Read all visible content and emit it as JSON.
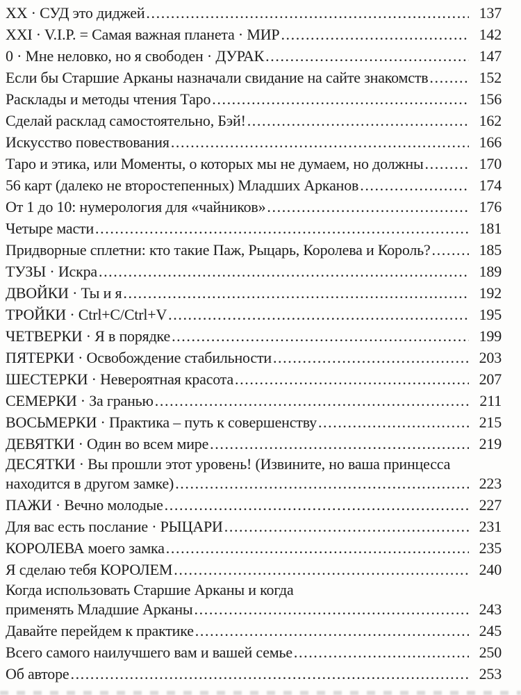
{
  "page": {
    "background_color": "#fdfdfc",
    "text_color": "#1e1e1e",
    "language": "ru",
    "kind": "book-table-of-contents"
  },
  "toc": {
    "entries": [
      {
        "lines": [
          "XX · СУД это диджей"
        ],
        "page": "137"
      },
      {
        "lines": [
          "XXI · V.I.P. = Самая важная планета · МИР"
        ],
        "page": "142"
      },
      {
        "lines": [
          "0 · Мне неловко, но я свободен · ДУРАК"
        ],
        "page": "147"
      },
      {
        "lines": [
          "Если бы Старшие Арканы назначали свидание на сайте знакомств"
        ],
        "page": "152"
      },
      {
        "lines": [
          "Расклады и методы чтения Таро"
        ],
        "page": "156"
      },
      {
        "lines": [
          "Сделай расклад самостоятельно, Бэй!"
        ],
        "page": "162"
      },
      {
        "lines": [
          "Искусство повествования"
        ],
        "page": "166"
      },
      {
        "lines": [
          "Таро и этика, или Моменты, о которых мы не думаем, но должны"
        ],
        "page": "170"
      },
      {
        "lines": [
          "56 карт (далеко не второстепенных) Младших Арканов"
        ],
        "page": "174"
      },
      {
        "lines": [
          "От 1 до 10: нумерология для «чайников»"
        ],
        "page": "176"
      },
      {
        "lines": [
          "Четыре масти"
        ],
        "page": "181"
      },
      {
        "lines": [
          "Придворные сплетни: кто такие Паж, Рыцарь, Королева и Король?"
        ],
        "page": "185"
      },
      {
        "lines": [
          "ТУЗЫ · Искра"
        ],
        "page": "189"
      },
      {
        "lines": [
          "ДВОЙКИ · Ты и я"
        ],
        "page": "192"
      },
      {
        "lines": [
          "ТРОЙКИ · Ctrl+C/Ctrl+V"
        ],
        "page": "195"
      },
      {
        "lines": [
          "ЧЕТВЕРКИ · Я в порядке"
        ],
        "page": "199"
      },
      {
        "lines": [
          "ПЯТЕРКИ · Освобождение стабильности"
        ],
        "page": "203"
      },
      {
        "lines": [
          "ШЕСТЕРКИ · Невероятная красота"
        ],
        "page": "207"
      },
      {
        "lines": [
          "СЕМЕРКИ · За гранью"
        ],
        "page": "211"
      },
      {
        "lines": [
          "ВОСЬМЕРКИ · Практика – путь к совершенству"
        ],
        "page": "215"
      },
      {
        "lines": [
          "ДЕВЯТКИ · Один во всем мире"
        ],
        "page": "219"
      },
      {
        "lines": [
          "ДЕСЯТКИ · Вы прошли этот уровень! (Извините, но ваша принцесса",
          "находится в другом замке)"
        ],
        "page": "223"
      },
      {
        "lines": [
          "ПАЖИ · Вечно молодые"
        ],
        "page": "227"
      },
      {
        "lines": [
          "Для вас есть послание · РЫЦАРИ"
        ],
        "page": "231"
      },
      {
        "lines": [
          "КОРОЛЕВА моего замка"
        ],
        "page": "235"
      },
      {
        "lines": [
          "Я сделаю тебя КОРОЛЕМ"
        ],
        "page": "240"
      },
      {
        "lines": [
          "Когда использовать Старшие Арканы и когда",
          "применять Младшие Арканы"
        ],
        "page": "243"
      },
      {
        "lines": [
          "Давайте перейдем к практике"
        ],
        "page": "245"
      },
      {
        "lines": [
          "Всего самого наилучшего вам и вашей семье"
        ],
        "page": "250"
      },
      {
        "lines": [
          "Об авторе"
        ],
        "page": "253"
      }
    ]
  }
}
